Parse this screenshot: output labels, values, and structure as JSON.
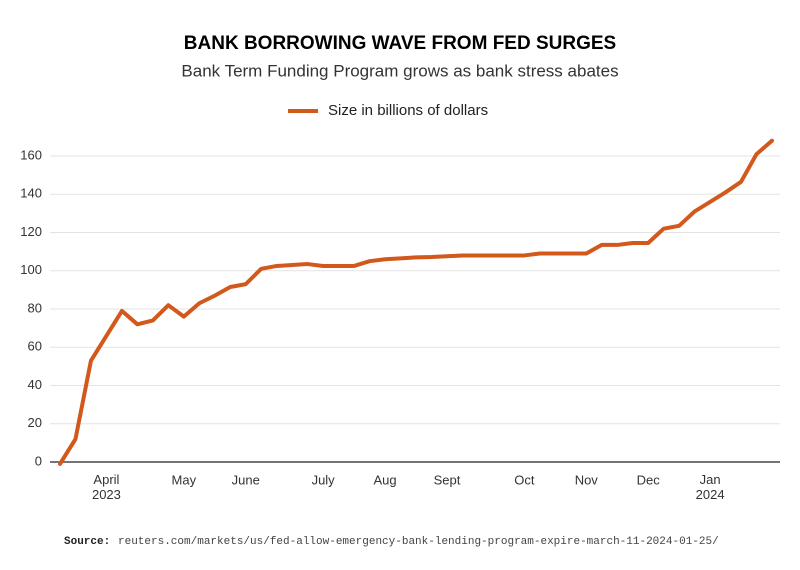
{
  "chart_data": {
    "type": "line",
    "title": "BANK BORROWING WAVE FROM FED SURGES",
    "subtitle": "Bank Term Funding Program grows as bank stress abates",
    "categories": [
      null,
      null,
      null,
      "April\n2023",
      null,
      null,
      null,
      null,
      "May",
      null,
      null,
      null,
      "June",
      null,
      null,
      null,
      null,
      "July",
      null,
      null,
      null,
      "Aug",
      null,
      null,
      null,
      "Sept",
      null,
      null,
      null,
      null,
      "Oct",
      null,
      null,
      null,
      "Nov",
      null,
      null,
      null,
      "Dec",
      null,
      null,
      null,
      "Jan\n2024",
      null,
      null,
      null,
      null
    ],
    "series": [
      {
        "name": "Size in billions of dollars",
        "color": "#d2581c",
        "values": [
          -1,
          12,
          53,
          66,
          79,
          72,
          74,
          82,
          76,
          83,
          87,
          91.5,
          93,
          101,
          102.5,
          103,
          103.5,
          102.5,
          102.5,
          102.5,
          105,
          106,
          106.5,
          107,
          107.2,
          107.6,
          108,
          108,
          108,
          108,
          108,
          109,
          109,
          109,
          109,
          113.5,
          113.5,
          114.5,
          114.5,
          122,
          123.5,
          131,
          136,
          141,
          146.5,
          161,
          168
        ]
      }
    ],
    "ylim": [
      0,
      160
    ],
    "yticks": [
      0,
      20,
      40,
      60,
      80,
      100,
      120,
      140,
      160
    ],
    "grid": true,
    "source_label": "Source:",
    "source": "reuters.com/markets/us/fed-allow-emergency-bank-lending-program-expire-march-11-2024-01-25/"
  }
}
